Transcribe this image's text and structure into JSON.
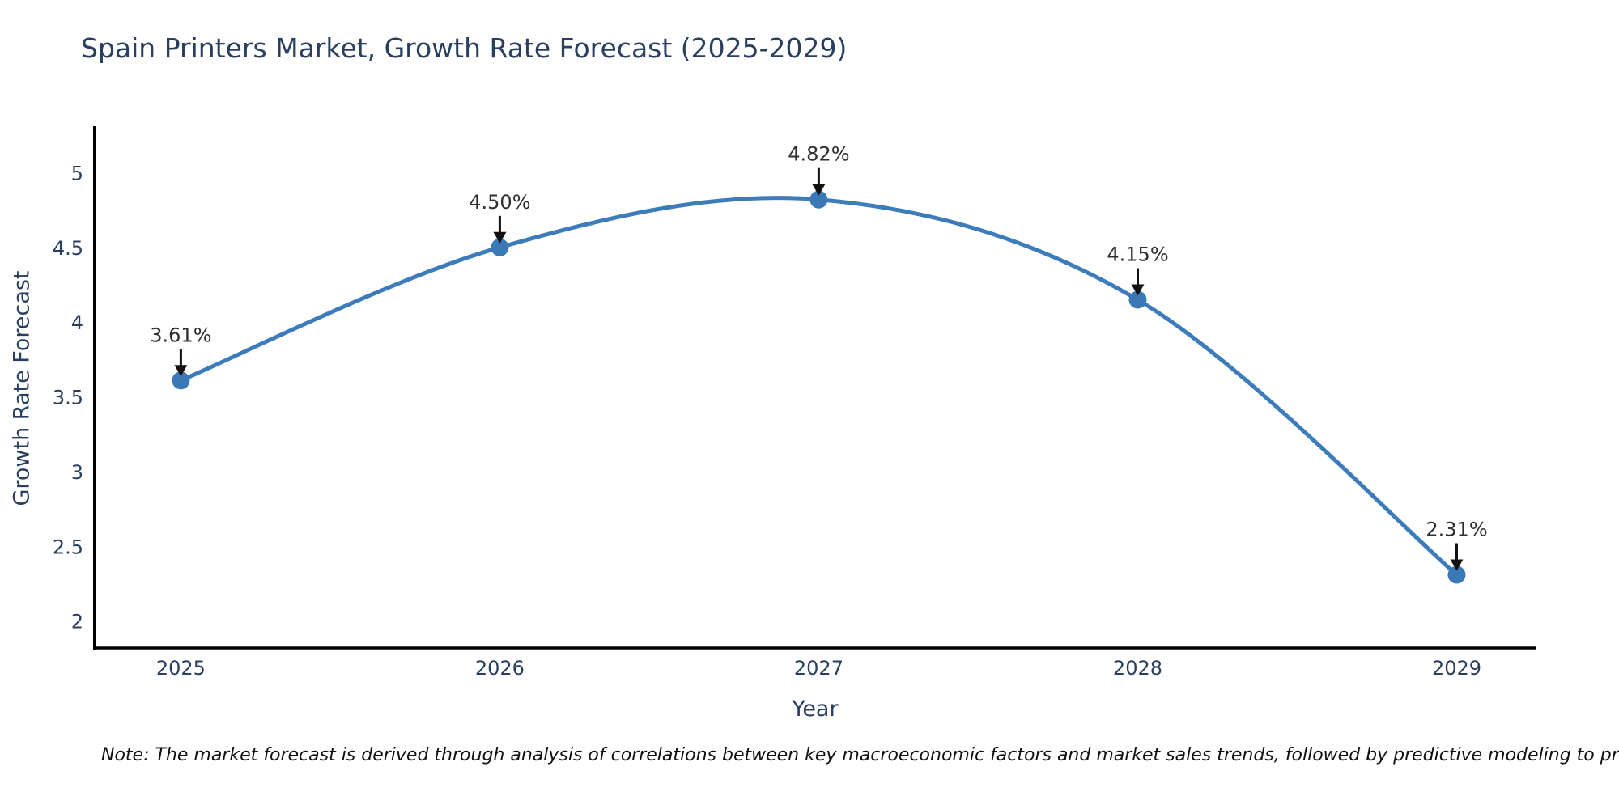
{
  "note": {
    "text": "Note: The market forecast is derived through analysis of correlations between key macroeconomic factors and market sales trends, followed by predictive modeling to project future sales"
  },
  "chart_data": {
    "type": "line",
    "title": "Spain Printers Market, Growth Rate Forecast (2025-2029)",
    "xlabel": "Year",
    "ylabel": "Growth Rate Forecast",
    "x": [
      2025,
      2026,
      2027,
      2028,
      2029
    ],
    "series": [
      {
        "name": "Growth Rate Forecast",
        "values": [
          3.61,
          4.5,
          4.82,
          4.15,
          2.31
        ]
      }
    ],
    "point_labels": [
      "3.61%",
      "4.50%",
      "4.82%",
      "4.15%",
      "2.31%"
    ],
    "xtick_labels": [
      "2025",
      "2026",
      "2027",
      "2028",
      "2029"
    ],
    "ytick_values": [
      2,
      2.5,
      3,
      3.5,
      4,
      4.5,
      5
    ],
    "ytick_labels": [
      "2",
      "2.5",
      "3",
      "3.5",
      "4",
      "4.5",
      "5"
    ],
    "xlim": [
      2024.73,
      2029.25
    ],
    "ylim": [
      1.82,
      5.3
    ],
    "grid": false,
    "legend_position": "none",
    "curve": "smooth",
    "colors": {
      "line": "#3d7cba",
      "marker": "#3a78b6",
      "axis": "#000000",
      "axis_text": "#2a3f5f",
      "annotation_text": "#2e2e2e",
      "arrow": "#111111",
      "background": "#ffffff"
    }
  }
}
